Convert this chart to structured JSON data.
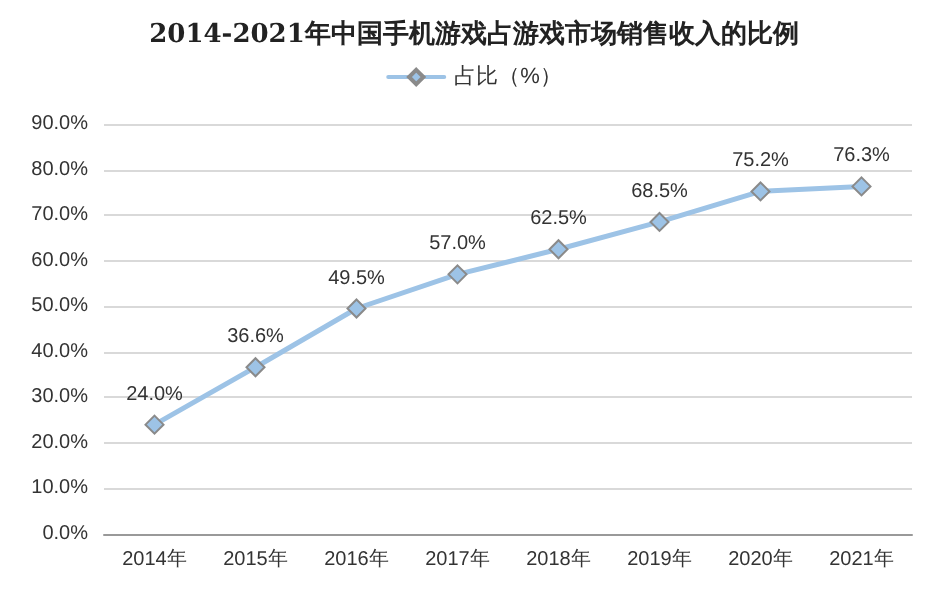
{
  "chart_data": {
    "type": "line",
    "title": "2014-2021年中国手机游戏占游戏市场销售收入的比例",
    "categories": [
      "2014年",
      "2015年",
      "2016年",
      "2017年",
      "2018年",
      "2019年",
      "2020年",
      "2021年"
    ],
    "series": [
      {
        "name": "占比（%）",
        "color": "#9dc3e6",
        "values": [
          24.0,
          36.6,
          49.5,
          57.0,
          62.5,
          68.5,
          75.2,
          76.3
        ],
        "value_labels": [
          "24.0%",
          "36.6%",
          "49.5%",
          "57.0%",
          "62.5%",
          "68.5%",
          "75.2%",
          "76.3%"
        ]
      }
    ],
    "ylim": [
      0,
      90
    ],
    "yticks": [
      {
        "value": 0,
        "label": "0.0%"
      },
      {
        "value": 10,
        "label": "10.0%"
      },
      {
        "value": 20,
        "label": "20.0%"
      },
      {
        "value": 30,
        "label": "30.0%"
      },
      {
        "value": 40,
        "label": "40.0%"
      },
      {
        "value": 50,
        "label": "50.0%"
      },
      {
        "value": 60,
        "label": "60.0%"
      },
      {
        "value": 70,
        "label": "70.0%"
      },
      {
        "value": 80,
        "label": "80.0%"
      },
      {
        "value": 90,
        "label": "90.0%"
      }
    ],
    "grid": "y",
    "legend": "top",
    "marker": "diamond",
    "line_style": "solid"
  }
}
